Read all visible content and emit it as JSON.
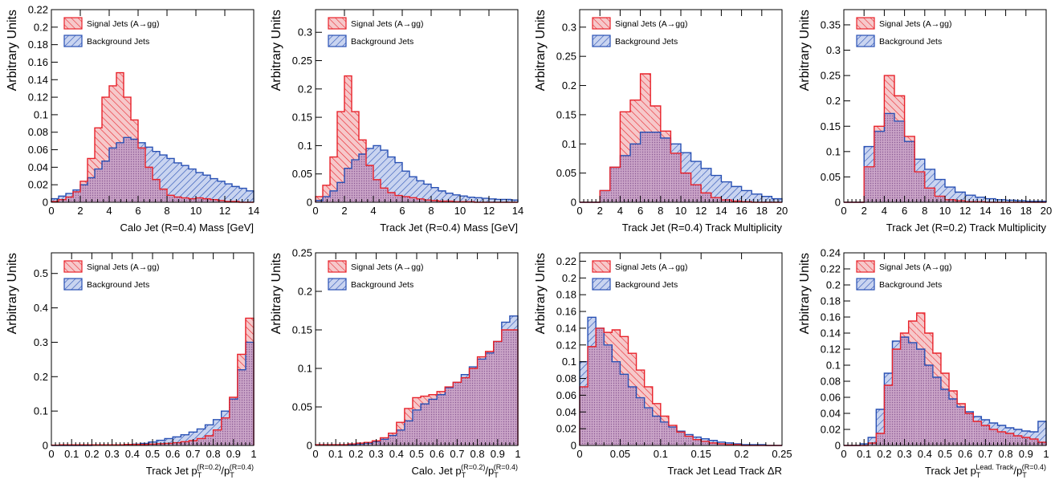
{
  "colors": {
    "signal": "#e8222a",
    "background": "#2850b4",
    "overlap": "#9a6aa0"
  },
  "chart_data": [
    {
      "type": "histogram",
      "ylabel": "Arbitrary Units",
      "xlabel": "Calo Jet (R=0.4) Mass [GeV]",
      "xlim": [
        0,
        14
      ],
      "ylim": [
        0,
        0.22
      ],
      "xticks": [
        "0",
        "2",
        "4",
        "6",
        "8",
        "10",
        "12",
        "14"
      ],
      "yticks": [
        "0",
        "0.02",
        "0.04",
        "0.06",
        "0.08",
        "0.1",
        "0.12",
        "0.14",
        "0.16",
        "0.18",
        "0.2",
        "0.22"
      ],
      "bin_width": 0.5,
      "legend": [
        "Signal Jets (A→gg)",
        "Background Jets"
      ],
      "series": [
        {
          "name": "Signal Jets (A→gg)",
          "values": [
            0.001,
            0.003,
            0.006,
            0.012,
            0.024,
            0.05,
            0.085,
            0.12,
            0.133,
            0.148,
            0.12,
            0.094,
            0.062,
            0.04,
            0.026,
            0.015,
            0.008,
            0.006,
            0.005,
            0.004,
            0.005,
            0.004,
            0.003,
            0.002,
            0.001,
            0.001,
            0.0,
            0.0
          ]
        },
        {
          "name": "Background Jets",
          "values": [
            0.004,
            0.007,
            0.01,
            0.014,
            0.02,
            0.028,
            0.038,
            0.047,
            0.062,
            0.068,
            0.074,
            0.072,
            0.068,
            0.063,
            0.058,
            0.054,
            0.05,
            0.045,
            0.042,
            0.038,
            0.034,
            0.031,
            0.027,
            0.024,
            0.021,
            0.018,
            0.016,
            0.013
          ]
        }
      ]
    },
    {
      "type": "histogram",
      "ylabel": "Arbitrary Units",
      "xlabel": "Track Jet (R=0.4) Mass [GeV]",
      "xlim": [
        0,
        14
      ],
      "ylim": [
        0,
        0.34
      ],
      "xticks": [
        "0",
        "2",
        "4",
        "6",
        "8",
        "10",
        "12",
        "14"
      ],
      "yticks": [
        "0",
        "0.05",
        "0.1",
        "0.15",
        "0.2",
        "0.25",
        "0.3"
      ],
      "bin_width": 0.5,
      "legend": [
        "Signal Jets (A→gg)",
        "Background Jets"
      ],
      "series": [
        {
          "name": "Signal Jets (A→gg)",
          "values": [
            0.01,
            0.03,
            0.08,
            0.16,
            0.223,
            0.16,
            0.11,
            0.065,
            0.04,
            0.025,
            0.017,
            0.012,
            0.01,
            0.008,
            0.006,
            0.004,
            0.003,
            0.002,
            0.002,
            0.001,
            0.001,
            0.001,
            0.0,
            0.0,
            0.0,
            0.0,
            0.0,
            0.0
          ]
        },
        {
          "name": "Background Jets",
          "values": [
            0.003,
            0.01,
            0.02,
            0.035,
            0.06,
            0.075,
            0.085,
            0.095,
            0.1,
            0.092,
            0.08,
            0.07,
            0.055,
            0.045,
            0.038,
            0.032,
            0.026,
            0.02,
            0.016,
            0.013,
            0.011,
            0.009,
            0.008,
            0.007,
            0.006,
            0.005,
            0.005,
            0.004
          ]
        }
      ]
    },
    {
      "type": "histogram",
      "ylabel": "Arbitrary Units",
      "xlabel": "Track Jet (R=0.4) Track Multiplicity",
      "xlim": [
        0,
        20
      ],
      "ylim": [
        0,
        0.33
      ],
      "xticks": [
        "0",
        "2",
        "4",
        "6",
        "8",
        "10",
        "12",
        "14",
        "16",
        "18",
        "20"
      ],
      "yticks": [
        "0",
        "0.05",
        "0.1",
        "0.15",
        "0.2",
        "0.25",
        "0.3"
      ],
      "bin_width": 1,
      "legend": [
        "Signal Jets (A→gg)",
        "Background Jets"
      ],
      "series": [
        {
          "name": "Signal Jets (A→gg)",
          "values": [
            0,
            0,
            0.02,
            0.06,
            0.155,
            0.175,
            0.22,
            0.165,
            0.122,
            0.084,
            0.05,
            0.03,
            0.016,
            0.008,
            0.004,
            0.002,
            0.001,
            0.0,
            0.0,
            0.0
          ]
        },
        {
          "name": "Background Jets",
          "values": [
            0,
            0,
            0.02,
            0.06,
            0.08,
            0.1,
            0.12,
            0.12,
            0.11,
            0.1,
            0.085,
            0.07,
            0.058,
            0.046,
            0.035,
            0.027,
            0.02,
            0.014,
            0.01,
            0.006
          ]
        }
      ]
    },
    {
      "type": "histogram",
      "ylabel": "Arbitrary Units",
      "xlabel": "Track Jet (R=0.2) Track Multiplicity",
      "xlim": [
        0,
        20
      ],
      "ylim": [
        0,
        0.38
      ],
      "xticks": [
        "0",
        "2",
        "4",
        "6",
        "8",
        "10",
        "12",
        "14",
        "16",
        "18",
        "20"
      ],
      "yticks": [
        "0",
        "0.05",
        "0.1",
        "0.15",
        "0.2",
        "0.25",
        "0.3",
        "0.35"
      ],
      "bin_width": 1,
      "legend": [
        "Signal Jets (A→gg)",
        "Background Jets"
      ],
      "series": [
        {
          "name": "Signal Jets (A→gg)",
          "values": [
            0,
            0,
            0.07,
            0.15,
            0.25,
            0.21,
            0.13,
            0.06,
            0.028,
            0.012,
            0.005,
            0.003,
            0.001,
            0.001,
            0.0,
            0.0,
            0.0,
            0.0,
            0.0,
            0.0
          ]
        },
        {
          "name": "Background Jets",
          "values": [
            0,
            0,
            0.11,
            0.14,
            0.175,
            0.16,
            0.12,
            0.085,
            0.065,
            0.045,
            0.03,
            0.02,
            0.014,
            0.01,
            0.007,
            0.005,
            0.004,
            0.003,
            0.002,
            0.002
          ]
        }
      ]
    },
    {
      "type": "histogram",
      "ylabel": "Arbitrary Units",
      "xlabel": "Track Jet p",
      "xlabel_parts": [
        "T",
        "(R=0.2)",
        "/p",
        "T",
        "(R=0.4)"
      ],
      "xlim": [
        0,
        1
      ],
      "ylim": [
        0,
        0.56
      ],
      "xticks": [
        "0",
        "0.1",
        "0.2",
        "0.3",
        "0.4",
        "0.5",
        "0.6",
        "0.7",
        "0.8",
        "0.9",
        "1"
      ],
      "yticks": [
        "0",
        "0.1",
        "0.2",
        "0.3",
        "0.4",
        "0.5"
      ],
      "bin_width": 0.04,
      "legend": [
        "Signal Jets (A→gg)",
        "Background Jets"
      ],
      "series": [
        {
          "name": "Signal Jets (A→gg)",
          "values": [
            0.001,
            0.002,
            0.002,
            0.002,
            0.002,
            0.002,
            0.002,
            0.002,
            0.002,
            0.003,
            0.003,
            0.003,
            0.004,
            0.005,
            0.006,
            0.008,
            0.011,
            0.014,
            0.02,
            0.028,
            0.045,
            0.08,
            0.14,
            0.265,
            0.37
          ]
        },
        {
          "name": "Background Jets",
          "values": [
            0.0,
            0.0,
            0.0,
            0.0,
            0.0,
            0.001,
            0.001,
            0.001,
            0.002,
            0.003,
            0.004,
            0.006,
            0.01,
            0.015,
            0.02,
            0.025,
            0.031,
            0.039,
            0.048,
            0.06,
            0.075,
            0.1,
            0.135,
            0.22,
            0.3
          ]
        }
      ]
    },
    {
      "type": "histogram",
      "ylabel": "Arbitrary Units",
      "xlabel": "Calo. Jet p",
      "xlabel_parts": [
        "T",
        "(R=0.2)",
        "/p",
        "T",
        "(R=0.4)"
      ],
      "xlim": [
        0,
        1
      ],
      "ylim": [
        0,
        0.25
      ],
      "xticks": [
        "0",
        "0.1",
        "0.2",
        "0.3",
        "0.4",
        "0.5",
        "0.6",
        "0.7",
        "0.8",
        "0.9",
        "1"
      ],
      "yticks": [
        "0",
        "0.05",
        "0.1",
        "0.15",
        "0.2",
        "0.25"
      ],
      "bin_width": 0.04,
      "legend": [
        "Signal Jets (A→gg)",
        "Background Jets"
      ],
      "series": [
        {
          "name": "Signal Jets (A→gg)",
          "values": [
            0.001,
            0.001,
            0.001,
            0.001,
            0.002,
            0.003,
            0.004,
            0.006,
            0.01,
            0.016,
            0.03,
            0.048,
            0.062,
            0.064,
            0.066,
            0.07,
            0.076,
            0.082,
            0.088,
            0.1,
            0.115,
            0.122,
            0.135,
            0.15,
            0.15
          ]
        },
        {
          "name": "Background Jets",
          "values": [
            0.001,
            0.001,
            0.001,
            0.001,
            0.001,
            0.002,
            0.003,
            0.005,
            0.008,
            0.013,
            0.02,
            0.032,
            0.046,
            0.054,
            0.06,
            0.066,
            0.075,
            0.082,
            0.092,
            0.102,
            0.112,
            0.12,
            0.135,
            0.16,
            0.168
          ]
        }
      ]
    },
    {
      "type": "histogram",
      "ylabel": "Arbitrary Units",
      "xlabel": "Track Jet Lead Track ΔR",
      "xlim": [
        0,
        0.25
      ],
      "ylim": [
        0,
        0.23
      ],
      "xticks": [
        "0",
        "0.05",
        "0.1",
        "0.15",
        "0.2",
        "0.25"
      ],
      "yticks": [
        "0",
        "0.02",
        "0.04",
        "0.06",
        "0.08",
        "0.1",
        "0.12",
        "0.14",
        "0.16",
        "0.18",
        "0.2",
        "0.22"
      ],
      "bin_width": 0.01,
      "legend": [
        "Signal Jets (A→gg)",
        "Background Jets"
      ],
      "series": [
        {
          "name": "Signal Jets (A→gg)",
          "values": [
            0.07,
            0.118,
            0.14,
            0.135,
            0.138,
            0.13,
            0.11,
            0.09,
            0.07,
            0.05,
            0.035,
            0.024,
            0.016,
            0.011,
            0.007,
            0.005,
            0.003,
            0.002,
            0.001,
            0.001,
            0.0,
            0.0,
            0.0,
            0.0,
            0.0
          ]
        },
        {
          "name": "Background Jets",
          "values": [
            0.1,
            0.153,
            0.14,
            0.12,
            0.1,
            0.085,
            0.07,
            0.057,
            0.045,
            0.035,
            0.028,
            0.022,
            0.017,
            0.013,
            0.01,
            0.008,
            0.006,
            0.004,
            0.003,
            0.002,
            0.001,
            0.001,
            0.001,
            0.0,
            0.0
          ]
        }
      ]
    },
    {
      "type": "histogram",
      "ylabel": "Arbitrary Units",
      "xlabel": "Track Jet p",
      "xlabel_parts": [
        "T",
        "Lead. Track",
        "/p",
        "T",
        "(R=0.4)"
      ],
      "xlim": [
        0,
        1
      ],
      "ylim": [
        0,
        0.24
      ],
      "xticks": [
        "0",
        "0.1",
        "0.2",
        "0.3",
        "0.4",
        "0.5",
        "0.6",
        "0.7",
        "0.8",
        "0.9",
        "1"
      ],
      "yticks": [
        "0",
        "0.02",
        "0.04",
        "0.06",
        "0.08",
        "0.1",
        "0.12",
        "0.14",
        "0.16",
        "0.18",
        "0.2",
        "0.22",
        "0.24"
      ],
      "bin_width": 0.04,
      "legend": [
        "Signal Jets (A→gg)",
        "Background Jets"
      ],
      "series": [
        {
          "name": "Signal Jets (A→gg)",
          "values": [
            0,
            0,
            0,
            0.003,
            0.015,
            0.075,
            0.12,
            0.14,
            0.155,
            0.165,
            0.14,
            0.115,
            0.09,
            0.068,
            0.052,
            0.04,
            0.03,
            0.025,
            0.02,
            0.017,
            0.015,
            0.012,
            0.01,
            0.008,
            0.004
          ]
        },
        {
          "name": "Background Jets",
          "values": [
            0,
            0,
            0.002,
            0.01,
            0.045,
            0.09,
            0.13,
            0.135,
            0.128,
            0.12,
            0.1,
            0.085,
            0.07,
            0.058,
            0.048,
            0.042,
            0.036,
            0.032,
            0.028,
            0.025,
            0.022,
            0.02,
            0.018,
            0.017,
            0.03
          ]
        }
      ]
    }
  ]
}
